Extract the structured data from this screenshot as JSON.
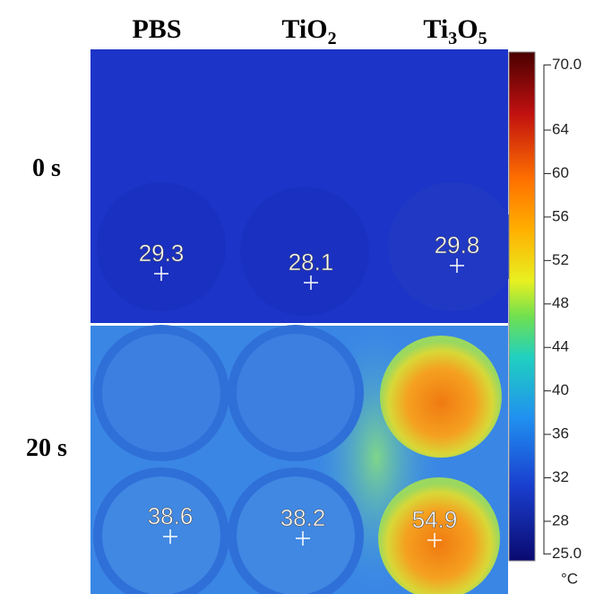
{
  "columns": [
    [
      "PBS"
    ],
    [
      "TiO",
      "2"
    ],
    [
      "Ti",
      "3",
      "O",
      "5"
    ]
  ],
  "rows": [
    "0 s",
    "20 s"
  ],
  "readings": [
    [
      "29.3",
      "28.1",
      "29.8"
    ],
    [
      "38.6",
      "38.2",
      "54.9"
    ]
  ],
  "colorbar": {
    "ticks": [
      "70.0",
      "64",
      "60",
      "56",
      "52",
      "48",
      "44",
      "40",
      "36",
      "32",
      "28",
      "25.0"
    ],
    "unit": "°C"
  }
}
